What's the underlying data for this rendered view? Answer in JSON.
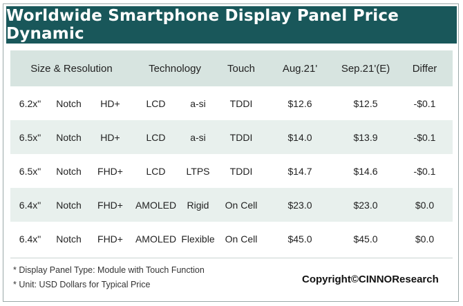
{
  "title": "Worldwide Smartphone Display Panel Price Dynamic",
  "table": {
    "headers": {
      "size_resolution": "Size & Resolution",
      "technology": "Technology",
      "touch": "Touch",
      "aug21": "Aug.21'",
      "sep21e": "Sep.21'(E)",
      "differ": "Differ"
    },
    "rows": [
      {
        "size": "6.2x\"",
        "notch": "Notch",
        "resolution": "HD+",
        "panel": "LCD",
        "tech": "a-si",
        "touch": "TDDI",
        "aug21": "$12.6",
        "sep21e": "$12.5",
        "differ": "-$0.1"
      },
      {
        "size": "6.5x\"",
        "notch": "Notch",
        "resolution": "HD+",
        "panel": "LCD",
        "tech": "a-si",
        "touch": "TDDI",
        "aug21": "$14.0",
        "sep21e": "$13.9",
        "differ": "-$0.1"
      },
      {
        "size": "6.5x\"",
        "notch": "Notch",
        "resolution": "FHD+",
        "panel": "LCD",
        "tech": "LTPS",
        "touch": "TDDI",
        "aug21": "$14.7",
        "sep21e": "$14.6",
        "differ": "-$0.1"
      },
      {
        "size": "6.4x\"",
        "notch": "Notch",
        "resolution": "FHD+",
        "panel": "AMOLED",
        "tech": "Rigid",
        "touch": "On Cell",
        "aug21": "$23.0",
        "sep21e": "$23.0",
        "differ": "$0.0"
      },
      {
        "size": "6.4x\"",
        "notch": "Notch",
        "resolution": "FHD+",
        "panel": "AMOLED",
        "tech": "Flexible",
        "touch": "On Cell",
        "aug21": "$45.0",
        "sep21e": "$45.0",
        "differ": "$0.0"
      }
    ]
  },
  "notes": [
    "* Display Panel Type: Module with Touch Function",
    "* Unit: USD Dollars for Typical Price"
  ],
  "copyright": "Copyright©CINNOResearch",
  "colors": {
    "title_background": "#19575a",
    "header_background": "#d7e4e0",
    "alternate_row_background": "#e8f0ed"
  }
}
